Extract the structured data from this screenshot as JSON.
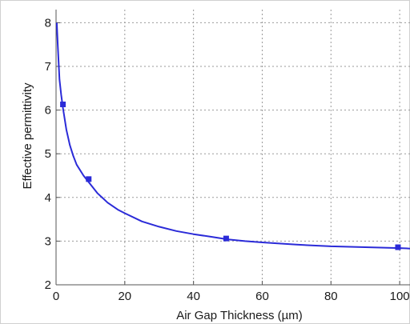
{
  "chart_data": {
    "type": "line",
    "title": "",
    "xlabel": "Air Gap Thickness (µm)",
    "ylabel": "Effective permittivity",
    "xlim": [
      0,
      103
    ],
    "ylim": [
      2,
      8.3
    ],
    "x_ticks": [
      0,
      20,
      40,
      60,
      80,
      100
    ],
    "y_ticks": [
      2,
      3,
      4,
      5,
      6,
      7,
      8
    ],
    "grid": true,
    "legend": "none",
    "series": [
      {
        "color": "#2b2bd8",
        "curve": {
          "x": [
            0.2,
            0.5,
            1,
            1.5,
            2,
            3,
            4,
            5,
            6,
            8,
            10,
            12,
            15,
            18,
            20,
            25,
            30,
            35,
            40,
            45,
            50,
            55,
            60,
            70,
            80,
            90,
            100,
            103
          ],
          "y": [
            8.0,
            7.5,
            6.7,
            6.35,
            6.05,
            5.55,
            5.2,
            4.95,
            4.75,
            4.5,
            4.3,
            4.1,
            3.88,
            3.72,
            3.64,
            3.45,
            3.33,
            3.23,
            3.16,
            3.1,
            3.04,
            3.0,
            2.97,
            2.92,
            2.88,
            2.86,
            2.84,
            2.83
          ]
        },
        "markers": {
          "x": [
            2,
            9.5,
            49.5,
            99.5
          ],
          "y": [
            6.13,
            4.42,
            3.06,
            2.86
          ]
        }
      }
    ]
  }
}
